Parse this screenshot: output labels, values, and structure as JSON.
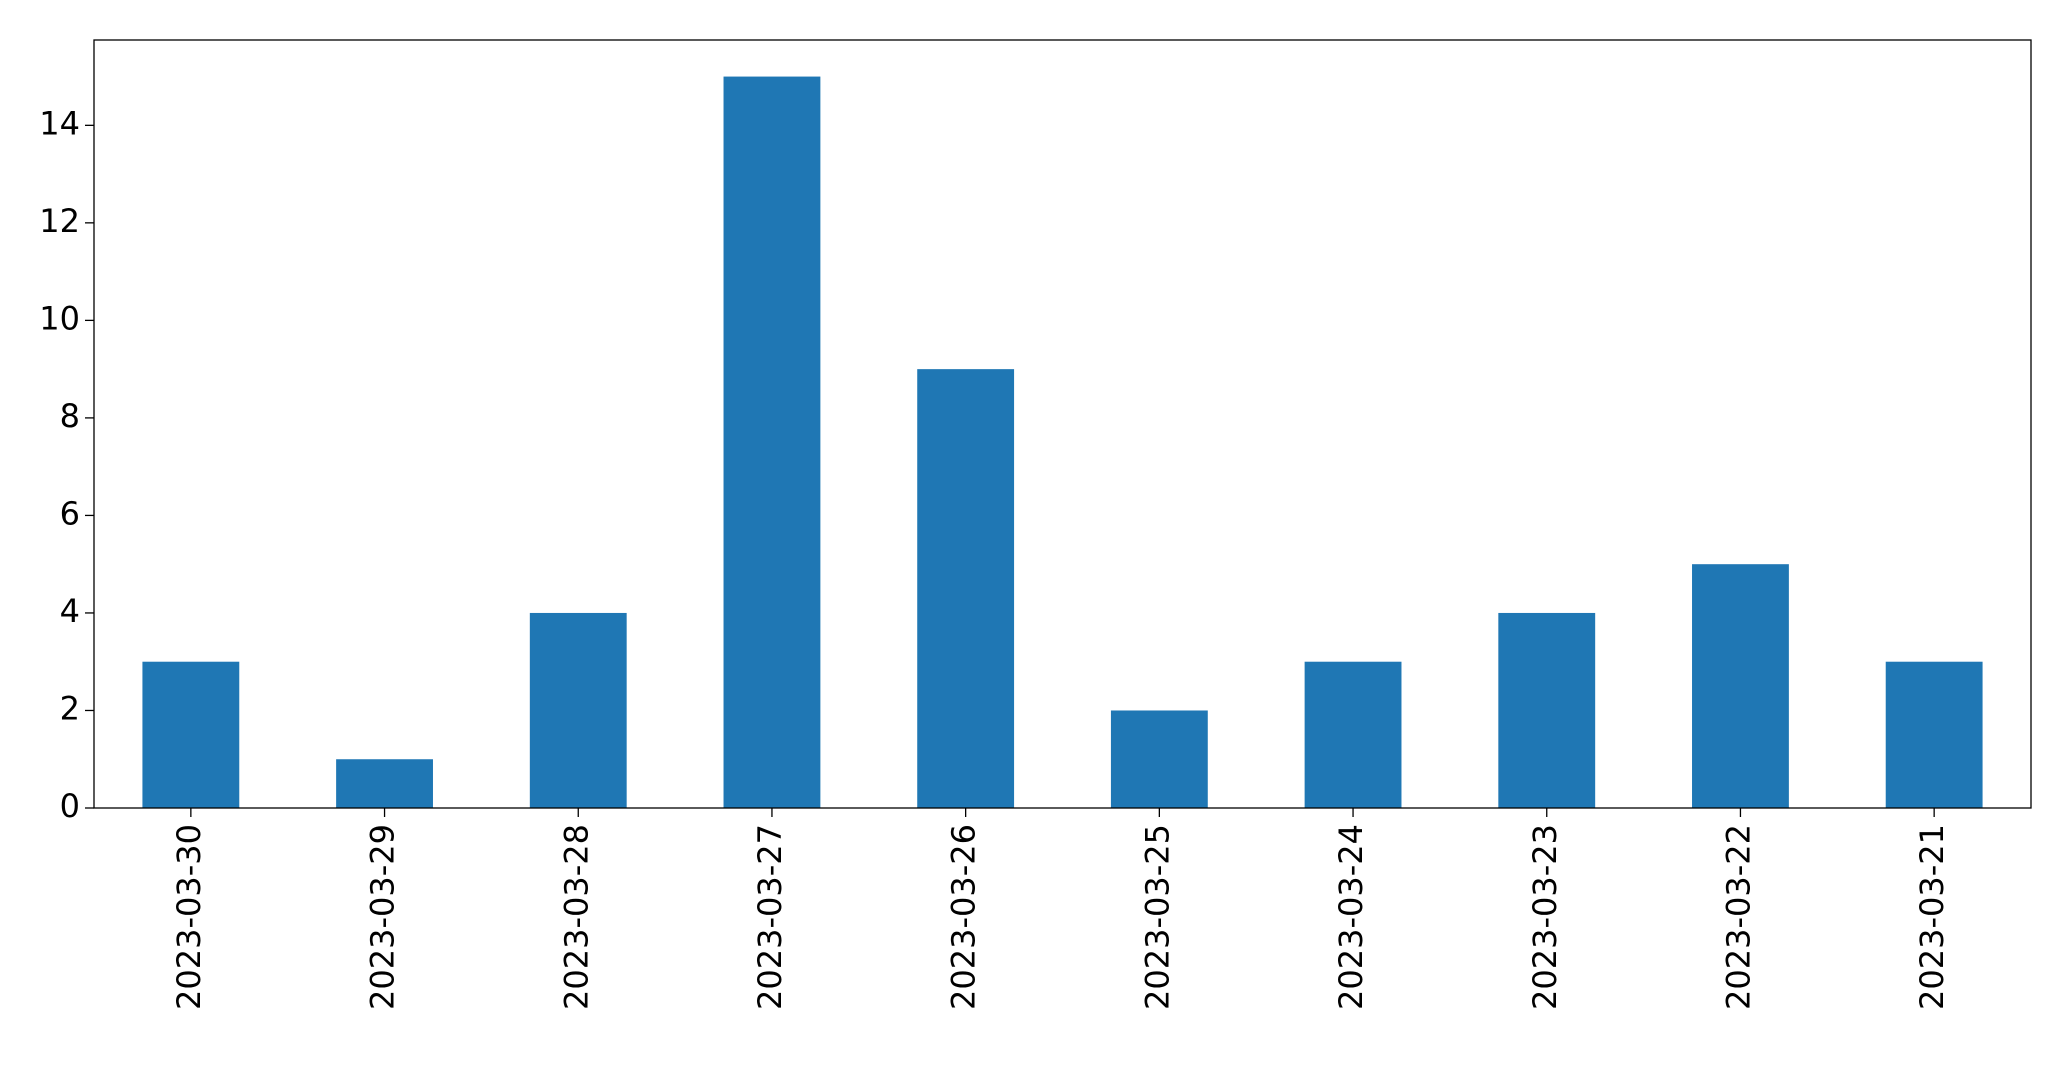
{
  "chart_data": {
    "type": "bar",
    "categories": [
      "2023-03-30",
      "2023-03-29",
      "2023-03-28",
      "2023-03-27",
      "2023-03-26",
      "2023-03-25",
      "2023-03-24",
      "2023-03-23",
      "2023-03-22",
      "2023-03-21"
    ],
    "values": [
      3,
      1,
      4,
      15,
      9,
      2,
      3,
      4,
      5,
      3
    ],
    "color": "#1f77b4",
    "ylim": [
      0,
      15.75
    ],
    "yticks": [
      0,
      2,
      4,
      6,
      8,
      10,
      12,
      14
    ],
    "grid": false
  }
}
